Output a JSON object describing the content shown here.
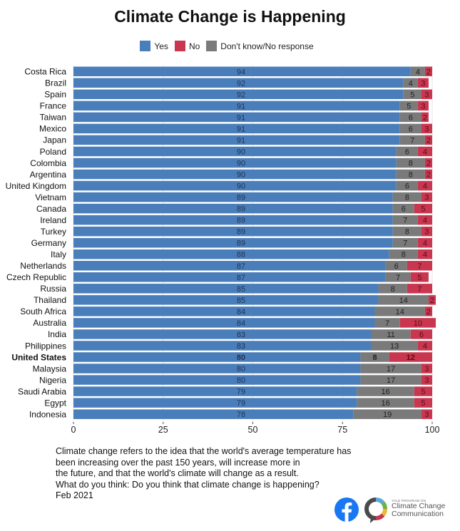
{
  "chart_data": {
    "type": "bar",
    "orientation": "horizontal",
    "stacked": true,
    "title": "Climate Change is Happening",
    "xlabel": "",
    "ylabel": "",
    "xlim": [
      0,
      100
    ],
    "xticks": [
      0,
      25,
      50,
      75,
      100
    ],
    "grid": true,
    "legend_position": "top-center",
    "legend": [
      {
        "key": "yes",
        "label": "Yes",
        "color": "#4a7ebb"
      },
      {
        "key": "no",
        "label": "No",
        "color": "#c9364f"
      },
      {
        "key": "dk",
        "label": "Don't know/No response",
        "color": "#7a7a7a"
      }
    ],
    "stack_order": [
      "yes",
      "dk",
      "no"
    ],
    "highlight_category": "United States",
    "categories": [
      "Costa Rica",
      "Brazil",
      "Spain",
      "France",
      "Taiwan",
      "Mexico",
      "Japan",
      "Poland",
      "Colombia",
      "Argentina",
      "United Kingdom",
      "Vietnam",
      "Canada",
      "Ireland",
      "Turkey",
      "Germany",
      "Italy",
      "Netherlands",
      "Czech Republic",
      "Russia",
      "Thailand",
      "South Africa",
      "Australia",
      "India",
      "Philippines",
      "United States",
      "Malaysia",
      "Nigeria",
      "Saudi Arabia",
      "Egypt",
      "Indonesia"
    ],
    "series": [
      {
        "name": "Yes",
        "key": "yes",
        "values": [
          94,
          92,
          92,
          91,
          91,
          91,
          91,
          90,
          90,
          90,
          90,
          89,
          89,
          89,
          89,
          89,
          88,
          87,
          87,
          85,
          85,
          84,
          84,
          83,
          83,
          80,
          80,
          80,
          79,
          79,
          78
        ]
      },
      {
        "name": "Don't know/No response",
        "key": "dk",
        "values": [
          4,
          4,
          5,
          5,
          6,
          6,
          7,
          6,
          8,
          8,
          6,
          8,
          6,
          7,
          8,
          7,
          8,
          6,
          7,
          8,
          14,
          14,
          7,
          11,
          13,
          8,
          17,
          17,
          16,
          16,
          19
        ]
      },
      {
        "name": "No",
        "key": "no",
        "values": [
          2,
          3,
          3,
          3,
          2,
          3,
          2,
          4,
          2,
          2,
          4,
          3,
          5,
          4,
          3,
          4,
          4,
          7,
          5,
          7,
          2,
          2,
          10,
          6,
          4,
          12,
          3,
          3,
          5,
          5,
          3
        ]
      }
    ]
  },
  "caption": {
    "lines": [
      "Climate change refers to the idea that the world's average temperature has",
      "been increasing over the past 150 years, will increase more in",
      "the future, and that the world's climate will change as a result.",
      "What do you think: Do you think that climate change is happening?",
      "Feb 2021"
    ]
  },
  "logos": {
    "facebook": "f",
    "ycc_small": "YALE PROGRAM ON",
    "ycc_line1": "Climate Change",
    "ycc_line2": "Communication"
  }
}
